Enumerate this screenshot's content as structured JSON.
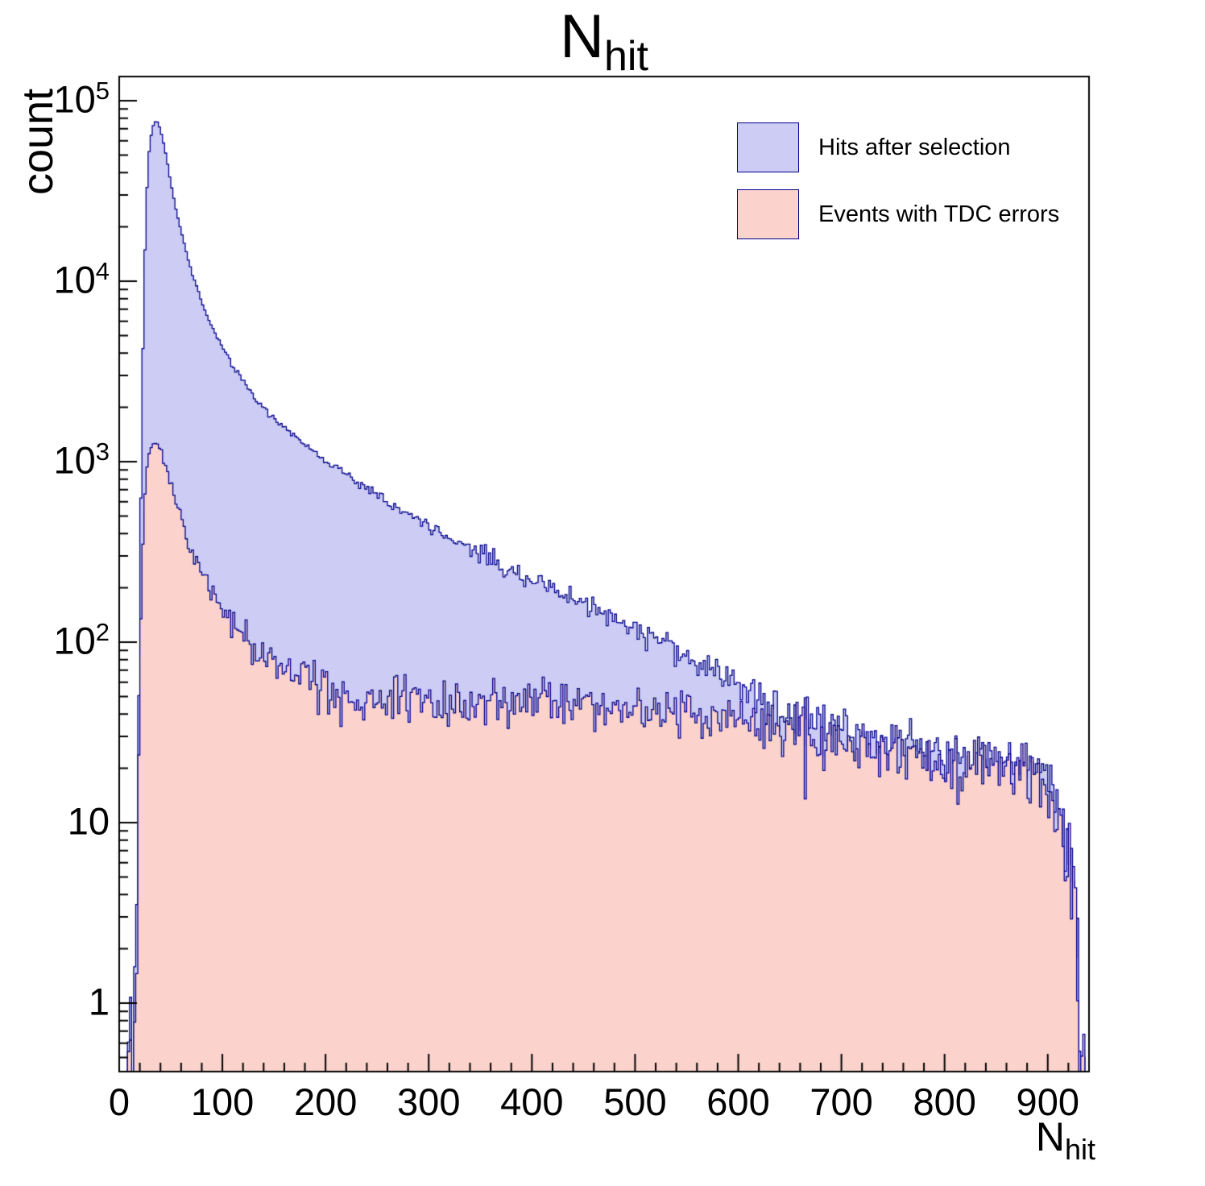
{
  "title": {
    "main": "N",
    "sub": "hit"
  },
  "axes": {
    "y_label": "count",
    "x_label_main": "N",
    "x_label_sub": "hit",
    "x_ticks": [
      0,
      100,
      200,
      300,
      400,
      500,
      600,
      700,
      800,
      900
    ],
    "y_ticks": [
      {
        "base": "1",
        "value": 1
      },
      {
        "base": "10",
        "value": 10
      },
      {
        "base": "10",
        "sup": "2",
        "value": 100
      },
      {
        "base": "10",
        "sup": "3",
        "value": 1000
      },
      {
        "base": "10",
        "sup": "4",
        "value": 10000
      },
      {
        "base": "10",
        "sup": "5",
        "value": 100000
      }
    ]
  },
  "legend": [
    {
      "label": "Hits after selection",
      "fill": "#ccccf5",
      "line": "#00008b"
    },
    {
      "label": "Events with TDC errors",
      "fill": "#fbd2cc",
      "line": "#00008b"
    }
  ],
  "chart_data": {
    "type": "area",
    "style": "step-histogram",
    "title": "N_hit",
    "xlabel": "N_hit",
    "ylabel": "count",
    "x_scale": "linear",
    "y_scale": "log",
    "xlim": [
      0,
      940
    ],
    "ylim": [
      0.42,
      136000
    ],
    "grid": false,
    "legend_position": "top-right",
    "bin_width": 2,
    "seed": 42,
    "noise": "poisson",
    "series": [
      {
        "name": "Hits after selection",
        "fill": "#ccccf5",
        "line": "#00008b",
        "anchors": [
          [
            8,
            0.4
          ],
          [
            9.5,
            0.4
          ],
          [
            10,
            2.5
          ],
          [
            11,
            3
          ],
          [
            12,
            0.5
          ],
          [
            14,
            0.45
          ],
          [
            15,
            0.45
          ],
          [
            16,
            1
          ],
          [
            18,
            12
          ],
          [
            20,
            200
          ],
          [
            22,
            2000
          ],
          [
            24,
            9000
          ],
          [
            26,
            25000
          ],
          [
            28,
            45000
          ],
          [
            30,
            60000
          ],
          [
            33,
            73000
          ],
          [
            36,
            78000
          ],
          [
            39,
            72000
          ],
          [
            42,
            62000
          ],
          [
            46,
            48000
          ],
          [
            50,
            35000
          ],
          [
            55,
            25000
          ],
          [
            60,
            19000
          ],
          [
            65,
            14500
          ],
          [
            70,
            11500
          ],
          [
            75,
            9300
          ],
          [
            80,
            7700
          ],
          [
            85,
            6500
          ],
          [
            90,
            5600
          ],
          [
            95,
            4900
          ],
          [
            100,
            4300
          ],
          [
            110,
            3400
          ],
          [
            120,
            2800
          ],
          [
            130,
            2350
          ],
          [
            140,
            2000
          ],
          [
            150,
            1750
          ],
          [
            160,
            1550
          ],
          [
            170,
            1380
          ],
          [
            180,
            1240
          ],
          [
            190,
            1120
          ],
          [
            200,
            1020
          ],
          [
            220,
            850
          ],
          [
            240,
            710
          ],
          [
            260,
            600
          ],
          [
            280,
            515
          ],
          [
            300,
            445
          ],
          [
            320,
            385
          ],
          [
            340,
            335
          ],
          [
            360,
            292
          ],
          [
            380,
            255
          ],
          [
            400,
            225
          ],
          [
            420,
            198
          ],
          [
            440,
            176
          ],
          [
            460,
            156
          ],
          [
            480,
            138
          ],
          [
            500,
            122
          ],
          [
            520,
            106
          ],
          [
            540,
            92
          ],
          [
            560,
            79
          ],
          [
            580,
            68
          ],
          [
            600,
            58
          ],
          [
            620,
            50
          ],
          [
            640,
            44
          ],
          [
            660,
            39
          ],
          [
            680,
            35
          ],
          [
            700,
            32
          ],
          [
            720,
            30
          ],
          [
            740,
            28
          ],
          [
            760,
            27
          ],
          [
            780,
            26
          ],
          [
            800,
            25
          ],
          [
            820,
            24
          ],
          [
            840,
            23
          ],
          [
            860,
            22
          ],
          [
            880,
            21
          ],
          [
            895,
            18
          ],
          [
            905,
            15
          ],
          [
            915,
            10
          ],
          [
            922,
            6
          ],
          [
            928,
            2
          ],
          [
            932,
            0.8
          ],
          [
            935,
            0.3
          ]
        ]
      },
      {
        "name": "Events with TDC errors",
        "fill": "#fbd2cc",
        "line": "#00008b",
        "anchors": [
          [
            8,
            0.35
          ],
          [
            14,
            0.4
          ],
          [
            16,
            0.8
          ],
          [
            18,
            6
          ],
          [
            20,
            60
          ],
          [
            22,
            250
          ],
          [
            24,
            550
          ],
          [
            26,
            850
          ],
          [
            28,
            1050
          ],
          [
            30,
            1180
          ],
          [
            33,
            1270
          ],
          [
            36,
            1300
          ],
          [
            39,
            1230
          ],
          [
            42,
            1100
          ],
          [
            46,
            920
          ],
          [
            50,
            760
          ],
          [
            55,
            600
          ],
          [
            60,
            480
          ],
          [
            65,
            395
          ],
          [
            70,
            330
          ],
          [
            75,
            282
          ],
          [
            80,
            245
          ],
          [
            85,
            215
          ],
          [
            90,
            190
          ],
          [
            95,
            170
          ],
          [
            100,
            152
          ],
          [
            110,
            126
          ],
          [
            120,
            108
          ],
          [
            130,
            95
          ],
          [
            140,
            85
          ],
          [
            150,
            77
          ],
          [
            160,
            70
          ],
          [
            170,
            65
          ],
          [
            180,
            61
          ],
          [
            190,
            57
          ],
          [
            200,
            54
          ],
          [
            220,
            51
          ],
          [
            240,
            49
          ],
          [
            260,
            48
          ],
          [
            280,
            48
          ],
          [
            300,
            48
          ],
          [
            320,
            47
          ],
          [
            340,
            47
          ],
          [
            360,
            47
          ],
          [
            380,
            47
          ],
          [
            400,
            47
          ],
          [
            420,
            46
          ],
          [
            440,
            46
          ],
          [
            460,
            45
          ],
          [
            480,
            44
          ],
          [
            500,
            43
          ],
          [
            520,
            42
          ],
          [
            540,
            41
          ],
          [
            560,
            40
          ],
          [
            580,
            38
          ],
          [
            600,
            37
          ],
          [
            620,
            35
          ],
          [
            640,
            33
          ],
          [
            660,
            31
          ],
          [
            680,
            29
          ],
          [
            700,
            28
          ],
          [
            720,
            26
          ],
          [
            740,
            25
          ],
          [
            760,
            24
          ],
          [
            780,
            23
          ],
          [
            800,
            22
          ],
          [
            820,
            21
          ],
          [
            840,
            20
          ],
          [
            860,
            19
          ],
          [
            880,
            18
          ],
          [
            895,
            16
          ],
          [
            905,
            13
          ],
          [
            915,
            9
          ],
          [
            922,
            5
          ],
          [
            928,
            2
          ],
          [
            932,
            0.8
          ],
          [
            935,
            0.3
          ]
        ]
      }
    ]
  }
}
